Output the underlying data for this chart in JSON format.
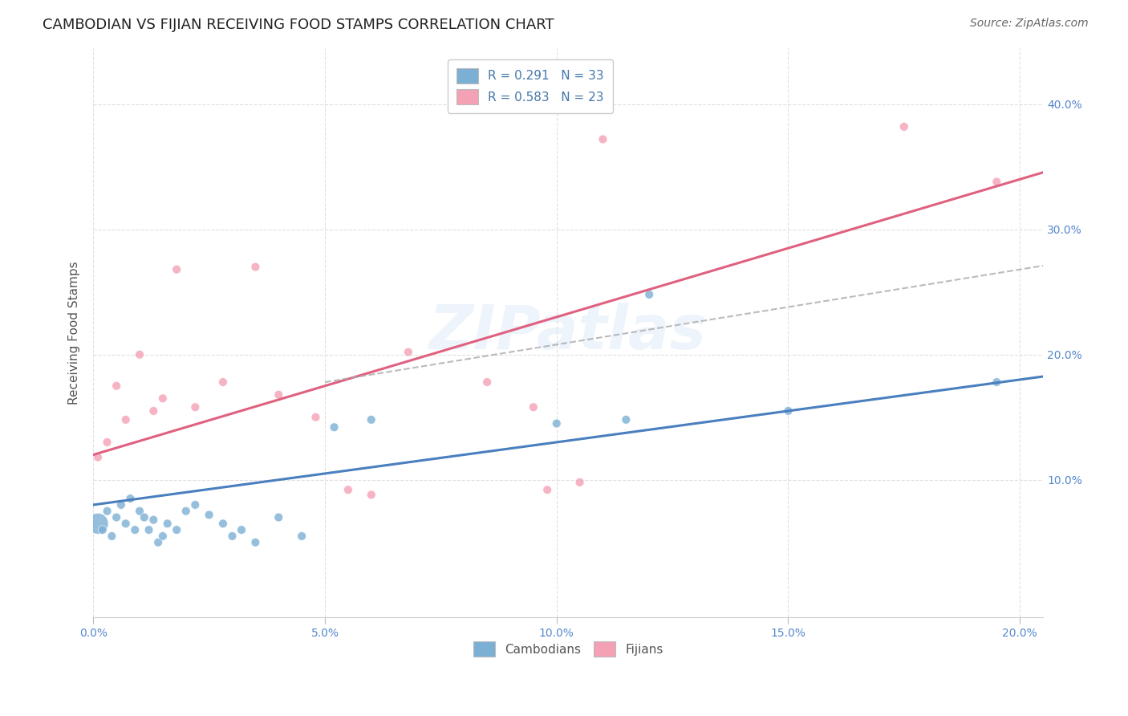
{
  "title": "CAMBODIAN VS FIJIAN RECEIVING FOOD STAMPS CORRELATION CHART",
  "source": "Source: ZipAtlas.com",
  "ylabel": "Receiving Food Stamps",
  "xlim": [
    0.0,
    0.205
  ],
  "ylim": [
    -0.01,
    0.445
  ],
  "xticks": [
    0.0,
    0.05,
    0.1,
    0.15,
    0.2
  ],
  "yticks": [
    0.1,
    0.2,
    0.3,
    0.4
  ],
  "ytick_labels": [
    "10.0%",
    "20.0%",
    "30.0%",
    "40.0%"
  ],
  "xtick_labels": [
    "0.0%",
    "5.0%",
    "10.0%",
    "15.0%",
    "20.0%"
  ],
  "cambodian_R": 0.291,
  "cambodian_N": 33,
  "fijian_R": 0.583,
  "fijian_N": 23,
  "cambodian_color": "#7bafd4",
  "fijian_color": "#f4a0b5",
  "cambodian_line_color": "#4a7fbf",
  "fijian_line_color": "#e06080",
  "dashed_line_color": "#aaaaaa",
  "watermark": "ZIPatlas",
  "background_color": "#ffffff",
  "grid_color": "#dddddd",
  "axis_label_color": "#5588cc",
  "cambodian_x": [
    0.001,
    0.002,
    0.003,
    0.004,
    0.005,
    0.006,
    0.007,
    0.008,
    0.009,
    0.01,
    0.011,
    0.012,
    0.013,
    0.014,
    0.015,
    0.016,
    0.018,
    0.02,
    0.022,
    0.025,
    0.028,
    0.03,
    0.032,
    0.035,
    0.04,
    0.045,
    0.052,
    0.06,
    0.1,
    0.115,
    0.12,
    0.15,
    0.195
  ],
  "cambodian_y": [
    0.065,
    0.06,
    0.075,
    0.055,
    0.07,
    0.08,
    0.065,
    0.085,
    0.06,
    0.075,
    0.07,
    0.06,
    0.068,
    0.05,
    0.055,
    0.065,
    0.06,
    0.075,
    0.08,
    0.072,
    0.065,
    0.055,
    0.06,
    0.05,
    0.07,
    0.055,
    0.142,
    0.148,
    0.145,
    0.148,
    0.248,
    0.155,
    0.178
  ],
  "fijian_x": [
    0.001,
    0.003,
    0.005,
    0.007,
    0.01,
    0.013,
    0.015,
    0.018,
    0.022,
    0.028,
    0.035,
    0.04,
    0.048,
    0.055,
    0.06,
    0.068,
    0.085,
    0.095,
    0.098,
    0.105,
    0.11,
    0.175,
    0.195
  ],
  "fijian_y": [
    0.118,
    0.13,
    0.175,
    0.148,
    0.2,
    0.155,
    0.165,
    0.268,
    0.158,
    0.178,
    0.27,
    0.168,
    0.15,
    0.092,
    0.088,
    0.202,
    0.178,
    0.158,
    0.092,
    0.098,
    0.372,
    0.382,
    0.338
  ],
  "cambodian_large_idx": 0,
  "cambodian_large_size": 350,
  "cambodian_base_size": 60,
  "fijian_base_size": 60,
  "title_fontsize": 13,
  "source_fontsize": 10,
  "axis_label_fontsize": 11,
  "tick_fontsize": 10,
  "legend_fontsize": 11,
  "cam_line_intercept": 0.08,
  "cam_line_slope": 0.5,
  "fij_line_intercept": 0.12,
  "fij_line_slope": 1.1,
  "dashed_intercept": 0.148,
  "dashed_slope": 0.6
}
